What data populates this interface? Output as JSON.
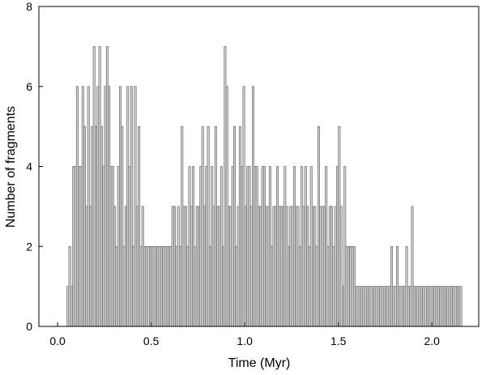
{
  "chart_data": {
    "type": "histogram",
    "x_label": "Time (Myr)",
    "y_label": "Number of fragments",
    "bins": [
      0.05,
      0.06,
      0.07,
      0.08,
      0.09,
      0.1,
      0.11,
      0.12,
      0.13,
      0.14,
      0.15,
      0.16,
      0.17,
      0.18,
      0.19,
      0.2,
      0.21,
      0.22,
      0.23,
      0.24,
      0.25,
      0.26,
      0.27,
      0.28,
      0.29,
      0.3,
      0.31,
      0.32,
      0.33,
      0.34,
      0.35,
      0.36,
      0.37,
      0.38,
      0.39,
      0.4,
      0.41,
      0.42,
      0.43,
      0.44,
      0.45,
      0.46,
      0.47,
      0.48,
      0.49,
      0.5,
      0.51,
      0.52,
      0.53,
      0.54,
      0.55,
      0.56,
      0.57,
      0.58,
      0.59,
      0.6,
      0.61,
      0.62,
      0.63,
      0.64,
      0.65,
      0.66,
      0.67,
      0.68,
      0.69,
      0.7,
      0.71,
      0.72,
      0.73,
      0.74,
      0.75,
      0.76,
      0.77,
      0.78,
      0.79,
      0.8,
      0.81,
      0.82,
      0.83,
      0.84,
      0.85,
      0.86,
      0.87,
      0.88,
      0.89,
      0.9,
      0.91,
      0.92,
      0.93,
      0.94,
      0.95,
      0.96,
      0.97,
      0.98,
      0.99,
      1.0,
      1.01,
      1.02,
      1.03,
      1.04,
      1.05,
      1.06,
      1.07,
      1.08,
      1.09,
      1.1,
      1.11,
      1.12,
      1.13,
      1.14,
      1.15,
      1.16,
      1.17,
      1.18,
      1.19,
      1.2,
      1.21,
      1.22,
      1.23,
      1.24,
      1.25,
      1.26,
      1.27,
      1.28,
      1.29,
      1.3,
      1.31,
      1.32,
      1.33,
      1.34,
      1.35,
      1.36,
      1.37,
      1.38,
      1.39,
      1.4,
      1.41,
      1.42,
      1.43,
      1.44,
      1.45,
      1.46,
      1.47,
      1.48,
      1.49,
      1.5,
      1.51,
      1.52,
      1.53,
      1.54,
      1.55,
      1.56,
      1.57,
      1.58,
      1.59,
      1.6,
      1.61,
      1.62,
      1.63,
      1.64,
      1.65,
      1.66,
      1.67,
      1.68,
      1.69,
      1.7,
      1.71,
      1.72,
      1.73,
      1.74,
      1.75,
      1.76,
      1.77,
      1.78,
      1.79,
      1.8,
      1.81,
      1.82,
      1.83,
      1.84,
      1.85,
      1.86,
      1.87,
      1.88,
      1.89,
      1.9,
      1.91,
      1.92,
      1.93,
      1.94,
      1.95,
      1.96,
      1.97,
      1.98,
      1.99,
      2.0,
      2.01,
      2.02,
      2.03,
      2.04,
      2.05,
      2.06,
      2.07,
      2.08,
      2.09,
      2.1,
      2.11,
      2.12,
      2.13,
      2.14,
      2.15,
      2.16
    ],
    "counts": [
      1,
      2,
      1,
      4,
      4,
      6,
      4,
      4,
      6,
      5,
      3,
      6,
      3,
      5,
      7,
      5,
      6,
      7,
      5,
      4,
      6,
      7,
      6,
      4,
      4,
      3,
      2,
      4,
      6,
      5,
      2,
      3,
      6,
      4,
      6,
      2,
      6,
      3,
      5,
      2,
      3,
      2,
      2,
      2,
      2,
      2,
      2,
      2,
      2,
      2,
      2,
      2,
      2,
      2,
      2,
      2,
      3,
      3,
      2,
      3,
      2,
      5,
      3,
      3,
      2,
      4,
      3,
      4,
      2,
      3,
      3,
      4,
      5,
      3,
      4,
      5,
      2,
      4,
      3,
      5,
      3,
      3,
      4,
      2,
      7,
      6,
      3,
      3,
      4,
      5,
      2,
      3,
      5,
      4,
      6,
      3,
      4,
      4,
      3,
      6,
      4,
      4,
      3,
      3,
      4,
      4,
      3,
      3,
      4,
      2,
      3,
      3,
      4,
      3,
      3,
      3,
      4,
      3,
      2,
      3,
      3,
      4,
      3,
      3,
      2,
      4,
      3,
      4,
      3,
      2,
      4,
      3,
      3,
      2,
      5,
      3,
      3,
      3,
      4,
      2,
      3,
      3,
      2,
      3,
      4,
      5,
      3,
      1,
      4,
      2,
      2,
      2,
      2,
      2,
      1,
      1,
      1,
      1,
      1,
      1,
      1,
      1,
      1,
      1,
      1,
      1,
      1,
      1,
      1,
      1,
      1,
      1,
      1,
      2,
      1,
      1,
      2,
      1,
      1,
      1,
      1,
      2,
      1,
      1,
      3,
      1,
      1,
      1,
      1,
      1,
      1,
      1,
      1,
      1,
      1,
      1,
      1,
      1,
      1,
      1,
      1,
      1,
      1,
      1,
      1,
      1,
      1,
      1,
      1,
      1,
      1
    ],
    "color": "#d3d3d3",
    "xlim": [
      -0.1,
      2.25
    ],
    "xticks": [
      {
        "value": 0,
        "label": "0.0"
      },
      0.5,
      {
        "value": 1,
        "label": "1.0"
      },
      1.5,
      {
        "value": 2,
        "label": "2.0"
      }
    ],
    "ylim": [
      0,
      8
    ],
    "yticks": [
      0,
      2,
      4,
      6,
      8
    ]
  }
}
